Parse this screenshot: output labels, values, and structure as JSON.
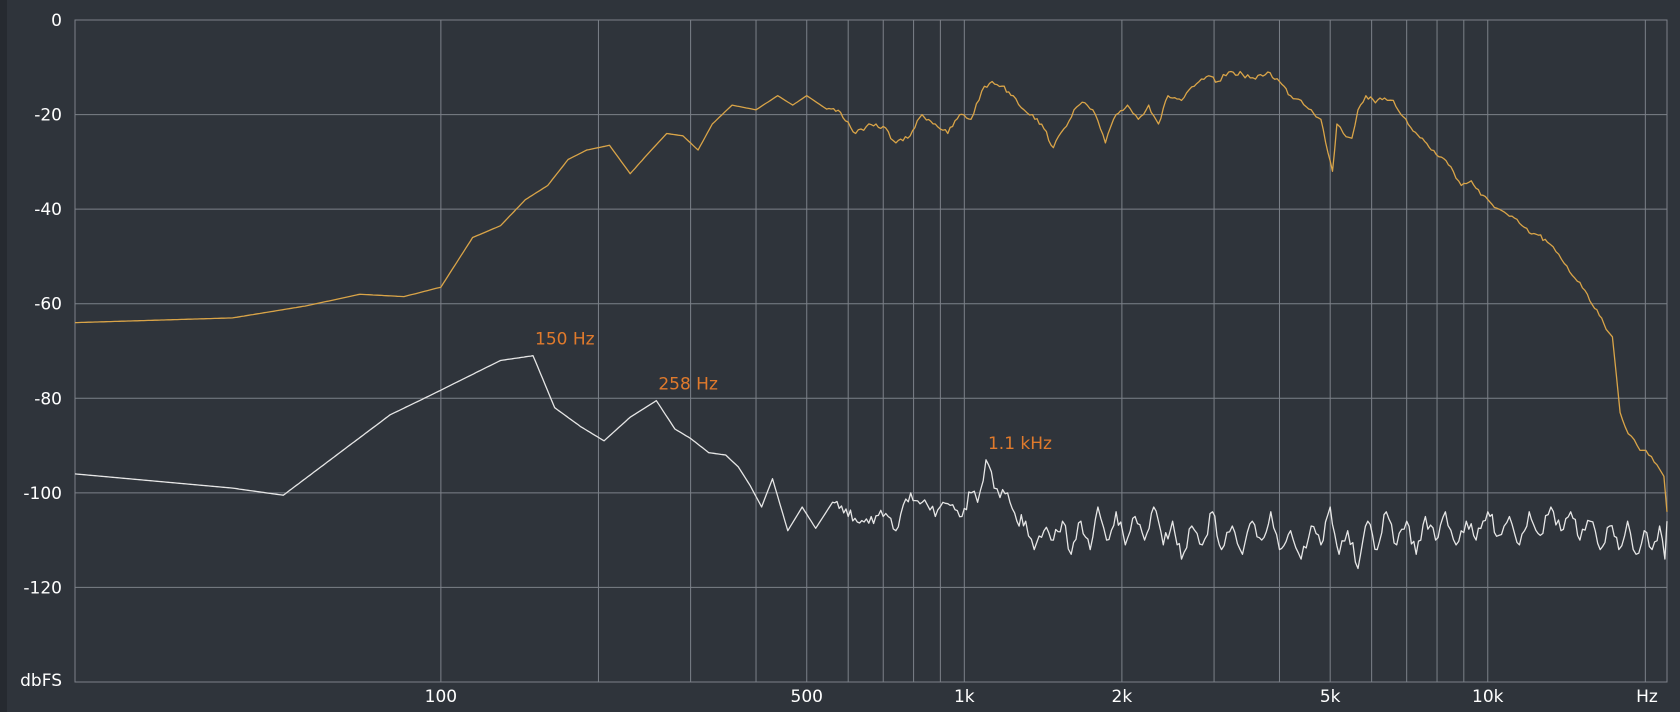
{
  "chart_data": {
    "type": "line",
    "title": "",
    "xlabel": "Hz",
    "ylabel": "dbFS",
    "x_scale": "log",
    "xlim": [
      20,
      22000
    ],
    "ylim": [
      -140,
      0
    ],
    "grid": true,
    "y_ticks": [
      0,
      -20,
      -40,
      -60,
      -80,
      -100,
      -120
    ],
    "y_tick_labels": [
      "0",
      "-20",
      "-40",
      "-60",
      "-80",
      "-100",
      "-120"
    ],
    "x_ticks": [
      100,
      500,
      1000,
      2000,
      5000,
      10000
    ],
    "x_tick_labels": [
      "100",
      "500",
      "1k",
      "2k",
      "5k",
      "10k"
    ],
    "x_grid": [
      100,
      200,
      300,
      400,
      500,
      600,
      700,
      800,
      900,
      1000,
      2000,
      3000,
      4000,
      5000,
      6000,
      7000,
      8000,
      9000,
      10000,
      20000
    ],
    "series": [
      {
        "color": "#d9a448",
        "points": [
          [
            20,
            -64
          ],
          [
            40,
            -63
          ],
          [
            55,
            -60.5
          ],
          [
            70,
            -58
          ],
          [
            85,
            -58.5
          ],
          [
            100,
            -56.5
          ],
          [
            115,
            -46
          ],
          [
            130,
            -43.5
          ],
          [
            145,
            -38
          ],
          [
            160,
            -35
          ],
          [
            175,
            -29.5
          ],
          [
            190,
            -27.5
          ],
          [
            210,
            -26.5
          ],
          [
            230,
            -32.5
          ],
          [
            250,
            -28
          ],
          [
            270,
            -24
          ],
          [
            290,
            -24.5
          ],
          [
            310,
            -27.5
          ],
          [
            330,
            -22
          ],
          [
            360,
            -18
          ],
          [
            400,
            -19
          ],
          [
            440,
            -16
          ],
          [
            470,
            -18
          ],
          [
            500,
            -16
          ],
          [
            540,
            -18.5
          ],
          [
            580,
            -19.5
          ],
          [
            620,
            -24
          ],
          [
            650,
            -22.5
          ],
          [
            700,
            -22.5
          ],
          [
            740,
            -26
          ],
          [
            780,
            -25
          ],
          [
            830,
            -20
          ],
          [
            880,
            -22
          ],
          [
            930,
            -24
          ],
          [
            980,
            -20
          ],
          [
            1030,
            -21
          ],
          [
            1080,
            -15
          ],
          [
            1130,
            -13
          ],
          [
            1180,
            -14
          ],
          [
            1240,
            -16
          ],
          [
            1300,
            -19
          ],
          [
            1350,
            -20
          ],
          [
            1420,
            -23
          ],
          [
            1480,
            -27
          ],
          [
            1550,
            -23
          ],
          [
            1620,
            -19
          ],
          [
            1700,
            -17.5
          ],
          [
            1780,
            -20
          ],
          [
            1860,
            -26
          ],
          [
            1950,
            -20
          ],
          [
            2050,
            -18
          ],
          [
            2150,
            -21
          ],
          [
            2250,
            -18
          ],
          [
            2350,
            -22
          ],
          [
            2450,
            -16
          ],
          [
            2600,
            -17
          ],
          [
            2750,
            -14
          ],
          [
            2900,
            -12
          ],
          [
            3050,
            -13
          ],
          [
            3200,
            -11
          ],
          [
            3400,
            -11.5
          ],
          [
            3600,
            -12.5
          ],
          [
            3800,
            -11
          ],
          [
            4000,
            -13
          ],
          [
            4200,
            -16
          ],
          [
            4400,
            -17
          ],
          [
            4600,
            -19
          ],
          [
            4800,
            -21
          ],
          [
            4950,
            -28
          ],
          [
            5050,
            -32
          ],
          [
            5150,
            -22
          ],
          [
            5300,
            -24
          ],
          [
            5500,
            -25
          ],
          [
            5650,
            -19
          ],
          [
            5850,
            -16
          ],
          [
            6100,
            -17.5
          ],
          [
            6350,
            -16.5
          ],
          [
            6600,
            -17
          ],
          [
            6900,
            -20.5
          ],
          [
            7200,
            -23.5
          ],
          [
            7500,
            -25
          ],
          [
            7800,
            -27.5
          ],
          [
            8150,
            -29
          ],
          [
            8500,
            -31
          ],
          [
            8900,
            -35
          ],
          [
            9300,
            -34
          ],
          [
            9700,
            -37
          ],
          [
            10100,
            -38.5
          ],
          [
            10500,
            -40
          ],
          [
            11000,
            -41.5
          ],
          [
            11500,
            -43
          ],
          [
            12000,
            -45
          ],
          [
            12500,
            -45.5
          ],
          [
            13000,
            -47
          ],
          [
            13500,
            -49
          ],
          [
            14000,
            -51.5
          ],
          [
            14500,
            -54
          ],
          [
            15000,
            -55.5
          ],
          [
            15500,
            -58
          ],
          [
            16000,
            -61
          ],
          [
            16500,
            -63
          ],
          [
            17000,
            -66
          ],
          [
            17300,
            -67
          ],
          [
            17600,
            -75
          ],
          [
            17900,
            -83
          ],
          [
            18300,
            -86
          ],
          [
            18800,
            -88
          ],
          [
            19300,
            -90
          ],
          [
            19800,
            -91
          ],
          [
            20300,
            -92
          ],
          [
            20800,
            -93.5
          ],
          [
            21300,
            -95
          ],
          [
            21700,
            -96.5
          ],
          [
            22000,
            -104
          ]
        ]
      },
      {
        "color": "#e6e6e6",
        "points": [
          [
            20,
            -96
          ],
          [
            40,
            -99
          ],
          [
            50,
            -100.5
          ],
          [
            65,
            -91
          ],
          [
            80,
            -83.5
          ],
          [
            95,
            -79.5
          ],
          [
            130,
            -72
          ],
          [
            150,
            -71
          ],
          [
            165,
            -82
          ],
          [
            185,
            -86
          ],
          [
            205,
            -89
          ],
          [
            230,
            -84
          ],
          [
            258,
            -80.5
          ],
          [
            280,
            -86.5
          ],
          [
            300,
            -88.5
          ],
          [
            325,
            -91.5
          ],
          [
            350,
            -92
          ],
          [
            370,
            -94.5
          ],
          [
            390,
            -98.5
          ],
          [
            410,
            -103
          ],
          [
            430,
            -97
          ],
          [
            460,
            -108
          ],
          [
            490,
            -103
          ],
          [
            520,
            -107.5
          ],
          [
            560,
            -102
          ],
          [
            600,
            -105
          ],
          [
            650,
            -105.5
          ],
          [
            700,
            -105
          ],
          [
            740,
            -108
          ],
          [
            790,
            -100
          ],
          [
            840,
            -101.5
          ],
          [
            880,
            -105
          ],
          [
            910,
            -102
          ],
          [
            950,
            -102.5
          ],
          [
            990,
            -105
          ],
          [
            1030,
            -100
          ],
          [
            1060,
            -102
          ],
          [
            1100,
            -93
          ],
          [
            1140,
            -99
          ],
          [
            1170,
            -101
          ],
          [
            1210,
            -100
          ],
          [
            1260,
            -106
          ],
          [
            1310,
            -106
          ],
          [
            1360,
            -112
          ],
          [
            1420,
            -108
          ],
          [
            1480,
            -110
          ],
          [
            1540,
            -106
          ],
          [
            1600,
            -113
          ],
          [
            1670,
            -106
          ],
          [
            1740,
            -112
          ],
          [
            1800,
            -103
          ],
          [
            1870,
            -110
          ],
          [
            1950,
            -104
          ],
          [
            2030,
            -111
          ],
          [
            2120,
            -105
          ],
          [
            2210,
            -110
          ],
          [
            2300,
            -103
          ],
          [
            2400,
            -111
          ],
          [
            2500,
            -106
          ],
          [
            2600,
            -114
          ],
          [
            2720,
            -107
          ],
          [
            2850,
            -111
          ],
          [
            2980,
            -104
          ],
          [
            3100,
            -112
          ],
          [
            3250,
            -107
          ],
          [
            3400,
            -113
          ],
          [
            3550,
            -106
          ],
          [
            3700,
            -110
          ],
          [
            3850,
            -104
          ],
          [
            4000,
            -112
          ],
          [
            4200,
            -108
          ],
          [
            4400,
            -114
          ],
          [
            4600,
            -107
          ],
          [
            4800,
            -111
          ],
          [
            5000,
            -103
          ],
          [
            5200,
            -113
          ],
          [
            5400,
            -108
          ],
          [
            5650,
            -116
          ],
          [
            5900,
            -106
          ],
          [
            6150,
            -112
          ],
          [
            6400,
            -104
          ],
          [
            6700,
            -111
          ],
          [
            7000,
            -106
          ],
          [
            7300,
            -113
          ],
          [
            7600,
            -105
          ],
          [
            7950,
            -110
          ],
          [
            8300,
            -104
          ],
          [
            8700,
            -111
          ],
          [
            9100,
            -106
          ],
          [
            9500,
            -110
          ],
          [
            10000,
            -104
          ],
          [
            10500,
            -109
          ],
          [
            11000,
            -105
          ],
          [
            11500,
            -111
          ],
          [
            12000,
            -104
          ],
          [
            12600,
            -109
          ],
          [
            13200,
            -103
          ],
          [
            13800,
            -108
          ],
          [
            14400,
            -104
          ],
          [
            15000,
            -110
          ],
          [
            15700,
            -106
          ],
          [
            16400,
            -112
          ],
          [
            17100,
            -107
          ],
          [
            17800,
            -112
          ],
          [
            18500,
            -106
          ],
          [
            19200,
            -113
          ],
          [
            19900,
            -108
          ],
          [
            20600,
            -112
          ],
          [
            21300,
            -107
          ],
          [
            21800,
            -114
          ],
          [
            22000,
            -106
          ]
        ]
      }
    ],
    "annotations": [
      {
        "text": "150 Hz",
        "x": 150,
        "y": -71
      },
      {
        "text": "258 Hz",
        "x": 258,
        "y": -80.5
      },
      {
        "text": "1.1 kHz",
        "x": 1100,
        "y": -93
      }
    ]
  }
}
